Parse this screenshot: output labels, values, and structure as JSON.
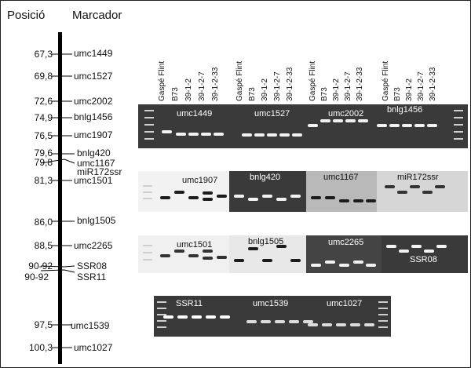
{
  "headers": {
    "position": "Posició",
    "marker": "Marcador"
  },
  "map": [
    {
      "pos": "67,3",
      "name": "umc1449"
    },
    {
      "pos": "69,8",
      "name": "umc1527"
    },
    {
      "pos": "72,6",
      "name": "umc2002"
    },
    {
      "pos": "74,9",
      "name": "bnlg1456"
    },
    {
      "pos": "76,5",
      "name": "umc1907"
    },
    {
      "pos": "79,6",
      "name": "bnlg420"
    },
    {
      "pos": "79,8",
      "name": "umc1167"
    },
    {
      "pos": "",
      "name": "miR172ssr"
    },
    {
      "pos": "81,3",
      "name": "umc1501"
    },
    {
      "pos": "86,0",
      "name": "bnlg1505"
    },
    {
      "pos": "88,5",
      "name": "umc2265"
    },
    {
      "pos": "90-92",
      "name": "SSR08"
    },
    {
      "pos": "90-92",
      "name": "SSR11"
    },
    {
      "pos": "97,5",
      "name": "umc1539"
    },
    {
      "pos": "100,3",
      "name": "umc1027"
    }
  ],
  "lanes": [
    "Gaspé Flint",
    "B73",
    "39-1-2",
    "39-1-2-7",
    "39-1-2-33"
  ],
  "gel_rows": [
    [
      "umc1449",
      "umc1527",
      "umc2002",
      "bnlg1456"
    ],
    [
      "umc1907",
      "bnlg420",
      "umc1167",
      "miR172ssr"
    ],
    [
      "umc1501",
      "bnlg1505",
      "umc2265",
      "SSR08"
    ],
    [
      "SSR11",
      "umc1539",
      "umc1027"
    ]
  ],
  "colors": {
    "gel_dark": "#3a3a3a",
    "gel_light": "#e9e9e9",
    "band": "#ffffff",
    "band_dark": "#222222"
  }
}
